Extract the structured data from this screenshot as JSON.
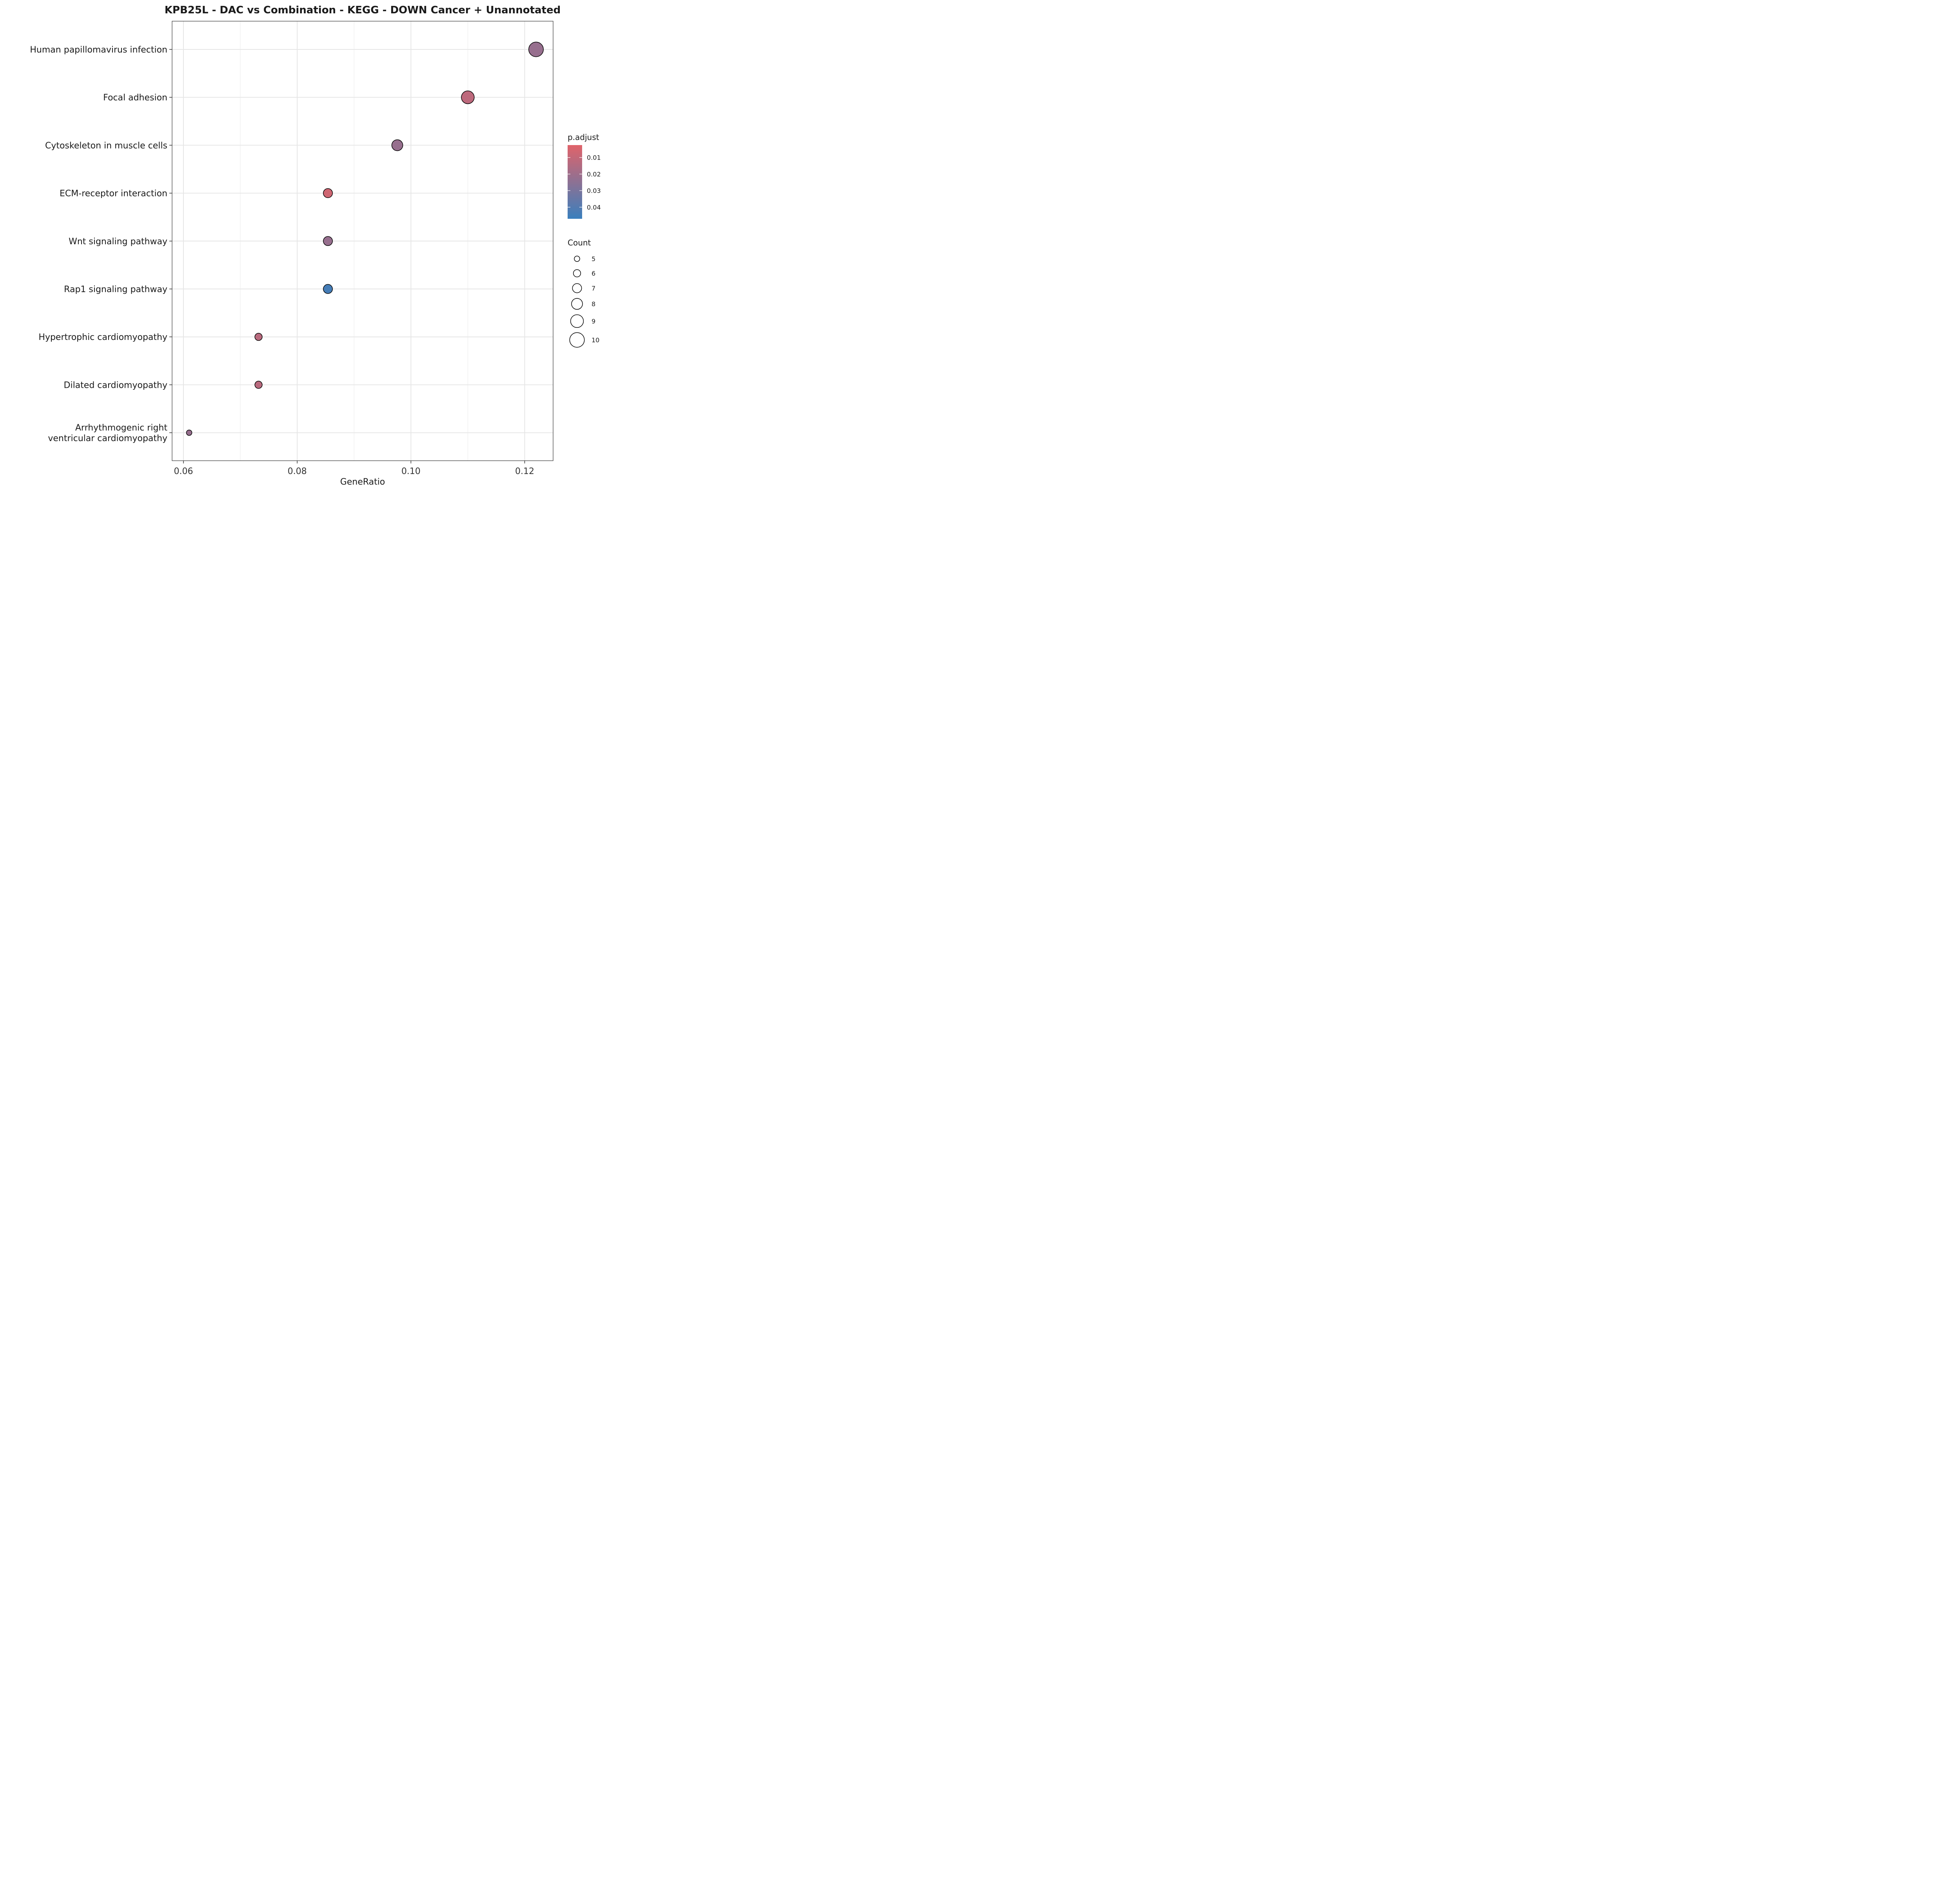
{
  "chart_data": {
    "type": "scatter",
    "title": "KPB25L - DAC vs Combination - KEGG - DOWN  Cancer + Unannotated",
    "xlabel": "GeneRatio",
    "ylabel": "",
    "xlim": [
      0.058,
      0.125
    ],
    "x_ticks": [
      0.06,
      0.08,
      0.1,
      0.12
    ],
    "x_tick_labels": [
      "0.06",
      "0.08",
      "0.10",
      "0.12"
    ],
    "grid": true,
    "categories": [
      "Human papillomavirus infection",
      "Focal adhesion",
      "Cytoskeleton in muscle cells",
      "ECM-receptor interaction",
      "Wnt signaling pathway",
      "Rap1 signaling pathway",
      "Hypertrophic cardiomyopathy",
      "Dilated cardiomyopathy",
      "Arrhythmogenic right\nventricular cardiomyopathy"
    ],
    "points": [
      {
        "term": "Human papillomavirus infection",
        "gene_ratio": 0.122,
        "count": 10,
        "p_adjust": 0.022
      },
      {
        "term": "Focal adhesion",
        "gene_ratio": 0.11,
        "count": 9,
        "p_adjust": 0.012
      },
      {
        "term": "Cytoskeleton in muscle cells",
        "gene_ratio": 0.0976,
        "count": 8,
        "p_adjust": 0.022
      },
      {
        "term": "ECM-receptor interaction",
        "gene_ratio": 0.0854,
        "count": 7,
        "p_adjust": 0.007
      },
      {
        "term": "Wnt signaling pathway",
        "gene_ratio": 0.0854,
        "count": 7,
        "p_adjust": 0.022
      },
      {
        "term": "Rap1 signaling pathway",
        "gene_ratio": 0.0854,
        "count": 7,
        "p_adjust": 0.044
      },
      {
        "term": "Hypertrophic cardiomyopathy",
        "gene_ratio": 0.0732,
        "count": 6,
        "p_adjust": 0.013
      },
      {
        "term": "Dilated cardiomyopathy",
        "gene_ratio": 0.0732,
        "count": 6,
        "p_adjust": 0.013
      },
      {
        "term": "Arrhythmogenic right\nventricular cardiomyopathy",
        "gene_ratio": 0.061,
        "count": 5,
        "p_adjust": 0.022
      }
    ],
    "color_legend": {
      "title": "p.adjust",
      "range": [
        0.0025,
        0.047
      ],
      "ticks": [
        0.01,
        0.02,
        0.03,
        0.04
      ],
      "tick_labels": [
        "0.01",
        "0.02",
        "0.03",
        "0.04"
      ],
      "low_color": "#e0636a",
      "high_color": "#3a7fbd"
    },
    "size_legend": {
      "title": "Count",
      "values": [
        5,
        6,
        7,
        8,
        9,
        10
      ],
      "labels": [
        "5",
        "6",
        "7",
        "8",
        "9",
        "10"
      ]
    },
    "legend_position": "right"
  }
}
